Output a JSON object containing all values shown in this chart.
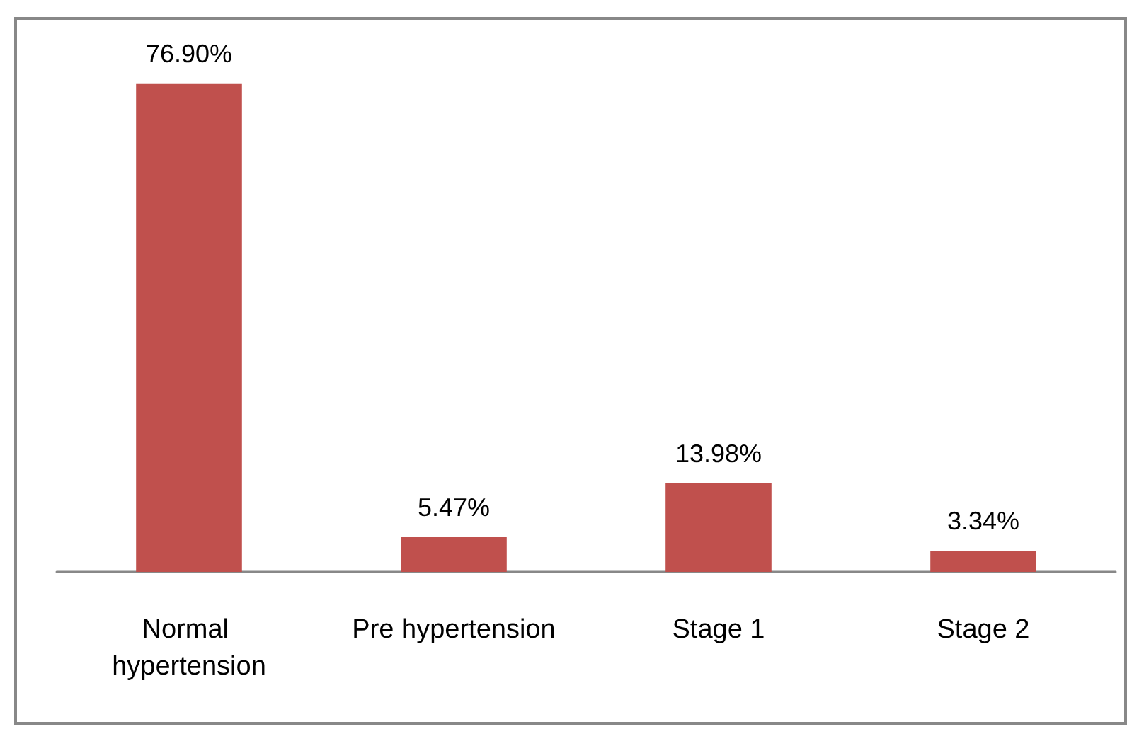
{
  "chart_data": {
    "type": "bar",
    "categories": [
      "Normal hypertension",
      "Pre hypertension",
      "Stage 1",
      "Stage 2"
    ],
    "values": [
      76.9,
      5.47,
      13.98,
      3.34
    ],
    "value_labels": [
      "76.90%",
      "5.47%",
      "13.98%",
      "3.34%"
    ],
    "color": "#c0504d"
  }
}
